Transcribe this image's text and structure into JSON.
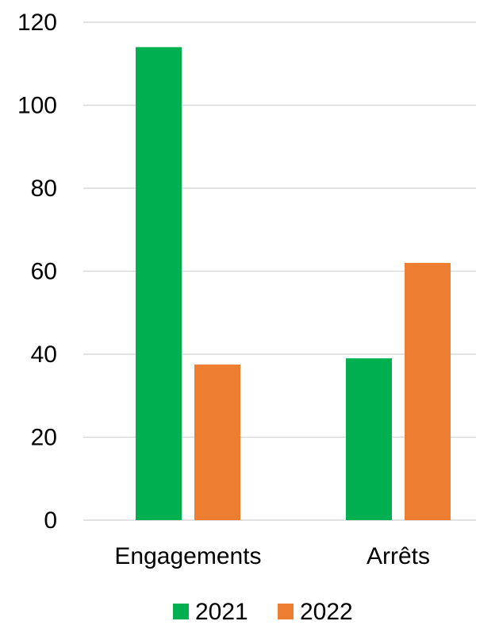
{
  "chart_data": {
    "type": "bar",
    "categories": [
      "Engagements",
      "Arrêts"
    ],
    "series": [
      {
        "name": "2021",
        "color": "#00b050",
        "values": [
          114,
          39
        ]
      },
      {
        "name": "2022",
        "color": "#ed7d31",
        "values": [
          37.5,
          62
        ]
      }
    ],
    "ylim": [
      0,
      120
    ],
    "yticks": [
      "0",
      "20",
      "40",
      "60",
      "80",
      "100",
      "120"
    ],
    "grid": true,
    "gridColor": "#d9d9d9",
    "legend": "bottom"
  }
}
